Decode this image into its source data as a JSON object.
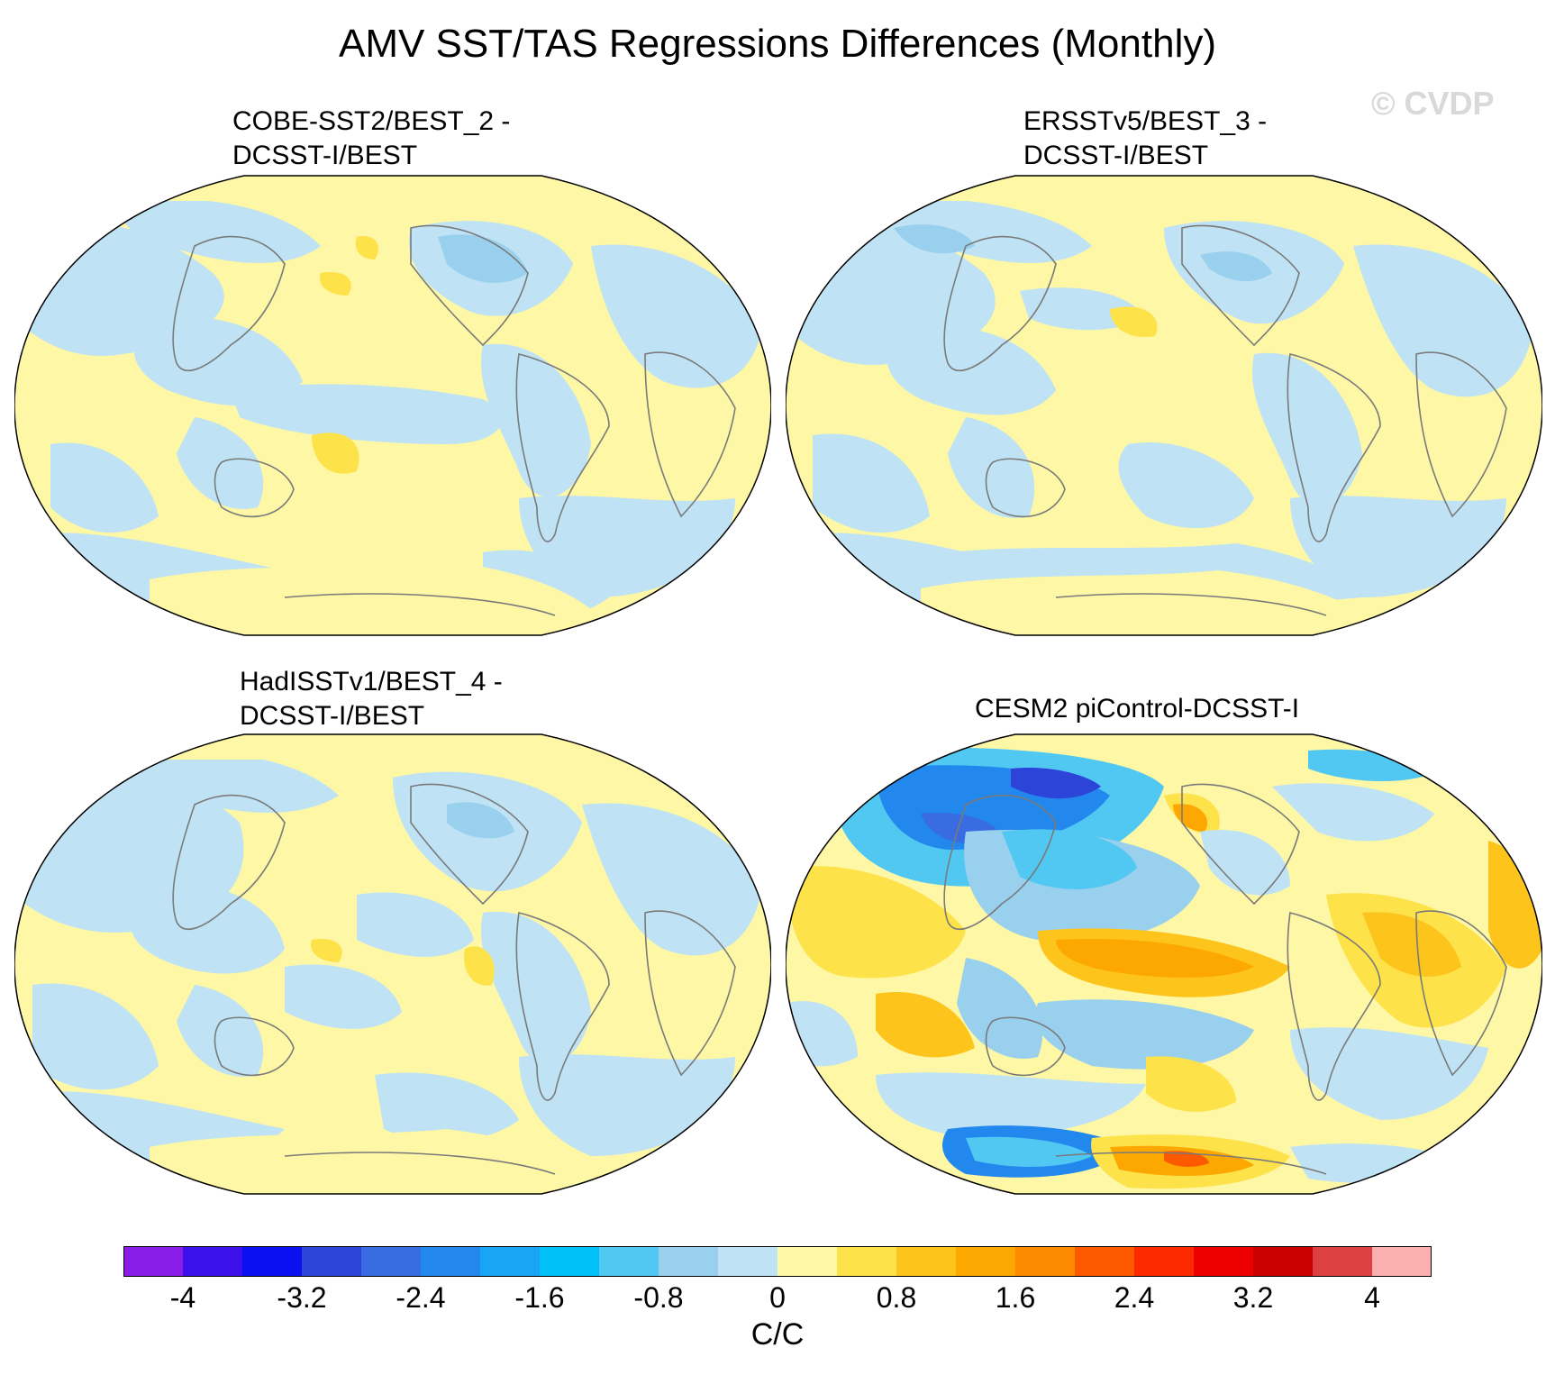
{
  "title": "AMV SST/TAS Regressions Differences (Monthly)",
  "watermark": "© CVDP",
  "panels": [
    {
      "line1": "COBE-SST2/BEST_2 -",
      "line2": "DCSST-I/BEST"
    },
    {
      "line1": "ERSSTv5/BEST_3 -",
      "line2": "DCSST-I/BEST"
    },
    {
      "line1": "HadISSTv1/BEST_4 -",
      "line2": "DCSST-I/BEST"
    },
    {
      "line1": "CESM2 piControl-DCSST-I",
      "line2": ""
    }
  ],
  "colorbar": {
    "colors": [
      "#8a1de8",
      "#3c10ea",
      "#0a10f0",
      "#2c44d8",
      "#386ce0",
      "#2288ee",
      "#1aa4f4",
      "#00c0f8",
      "#50c8f2",
      "#98d0ee",
      "#bfe3f4",
      "#fdf7a6",
      "#fde24a",
      "#fdc41c",
      "#fda800",
      "#fd8a00",
      "#fd5a00",
      "#fd2a00",
      "#ec0000",
      "#c80000",
      "#dc4040",
      "#fbb0b0"
    ],
    "tick_labels": [
      "-4",
      "-3.2",
      "-2.4",
      "-1.6",
      "-0.8",
      "0",
      "0.8",
      "1.6",
      "2.4",
      "3.2",
      "4"
    ],
    "unit": "C/C"
  },
  "map_colors": {
    "land_outline": "#888888",
    "positive": "#fdf7a6",
    "negative": "#bfe3f4"
  }
}
